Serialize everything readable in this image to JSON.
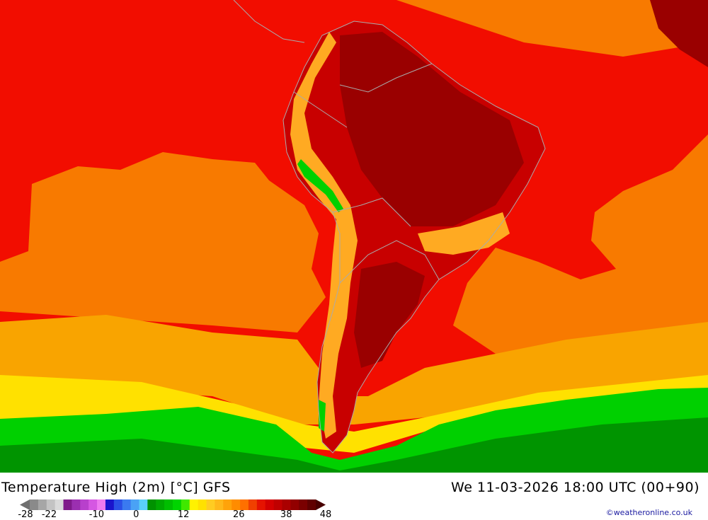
{
  "map": {
    "title": "Temperature High (2m) [°C] GFS",
    "valid_time": "We 11-03-2026 18:00 UTC (00+90)",
    "credit": "©weatheronline.co.uk",
    "colors": {
      "ocean_warm": "#f20d00",
      "ocean_orange": "#f87a00",
      "ocean_amber": "#f9a400",
      "ocean_yellow": "#ffe100",
      "ocean_green": "#00d000",
      "ocean_darkgreen": "#009400",
      "land_hot": "#c80000",
      "land_hotter": "#9a0000",
      "highland": "#ffaa22",
      "border": "#aaaaaa"
    }
  },
  "legend": {
    "swatches": [
      "#6f6f6f",
      "#8a8a8a",
      "#a6a6a6",
      "#c3c3c3",
      "#dadada",
      "#7f1a8a",
      "#9b2fb0",
      "#b840cc",
      "#d557e2",
      "#ee7af0",
      "#1a14cc",
      "#2a4fe6",
      "#3a7af0",
      "#4aa2f5",
      "#5ad0f8",
      "#009200",
      "#00a800",
      "#00be00",
      "#00d400",
      "#3fe800",
      "#fff200",
      "#ffe100",
      "#ffcc22",
      "#ffb81a",
      "#ffa30a",
      "#ff8c00",
      "#ff7000",
      "#f04000",
      "#e51300",
      "#d40000",
      "#c00000",
      "#aa0000",
      "#920000",
      "#7a0000",
      "#600000",
      "#480000"
    ],
    "ticks": [
      {
        "label": "-28",
        "value": -28
      },
      {
        "label": "-22",
        "value": -22
      },
      {
        "label": "-10",
        "value": -10
      },
      {
        "label": "0",
        "value": 0
      },
      {
        "label": "12",
        "value": 12
      },
      {
        "label": "26",
        "value": 26
      },
      {
        "label": "38",
        "value": 38
      },
      {
        "label": "48",
        "value": 48
      }
    ]
  }
}
